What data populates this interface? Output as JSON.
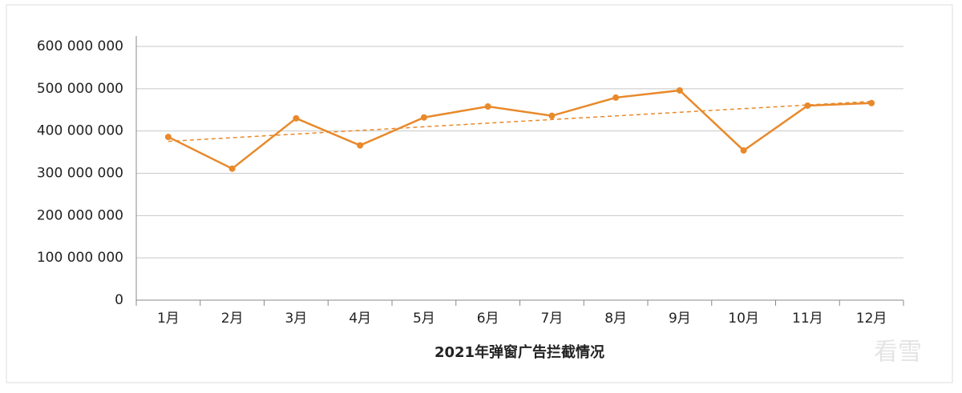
{
  "chart_data": {
    "type": "line",
    "xlabel": "2021年弹窗广告拦截情况",
    "categories": [
      "1月",
      "2月",
      "3月",
      "4月",
      "5月",
      "6月",
      "7月",
      "8月",
      "9月",
      "10月",
      "11月",
      "12月"
    ],
    "series": [
      {
        "color": "#e8892b",
        "values": [
          386000000,
          311000000,
          430000000,
          366000000,
          432000000,
          458000000,
          436000000,
          479000000,
          496000000,
          354000000,
          460000000,
          466000000
        ]
      }
    ],
    "trendline": true,
    "ylim": [
      0,
      600000000
    ],
    "yticks": [
      0,
      {
        "value": 100000000,
        "label": "100 000 000"
      },
      {
        "value": 200000000,
        "label": "200 000 000"
      },
      {
        "value": 300000000,
        "label": "300 000 000"
      },
      {
        "value": 400000000,
        "label": "400 000 000"
      },
      {
        "value": 500000000,
        "label": "500 000 000"
      },
      {
        "value": 600000000,
        "label": "600 000 000"
      }
    ],
    "grid": true,
    "watermark": "看雪"
  }
}
